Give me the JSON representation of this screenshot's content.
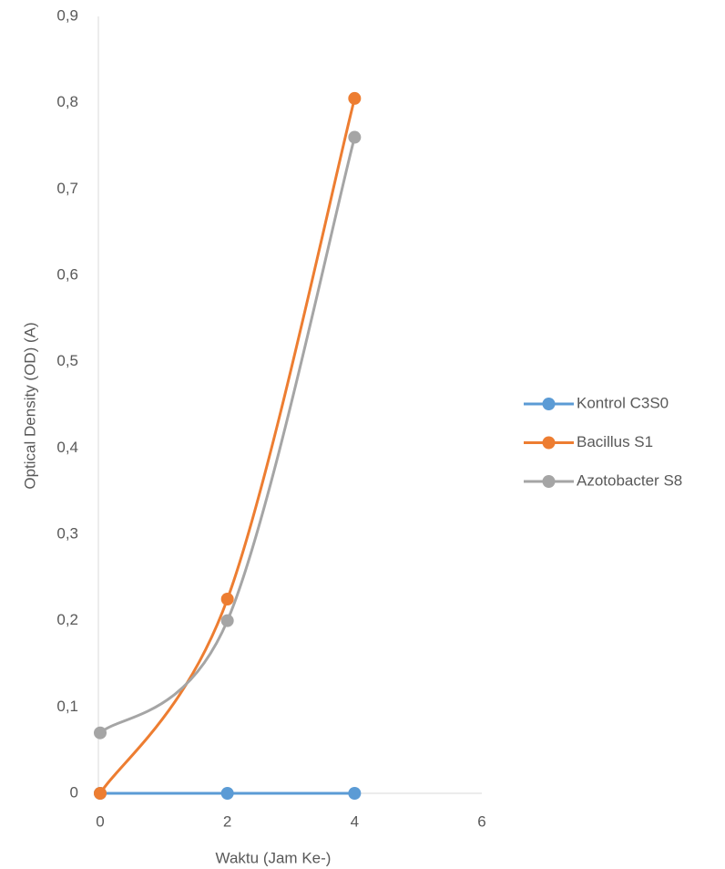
{
  "chart_data": {
    "type": "line",
    "x_label": "Waktu (Jam Ke-)",
    "y_label": "Optical Density (OD) (A)",
    "x": [
      0,
      2,
      4
    ],
    "series": [
      {
        "name": "Kontrol C3S0",
        "color": "#5b9bd5",
        "values": [
          0,
          0,
          0
        ]
      },
      {
        "name": "Bacillus S1",
        "color": "#ed7d31",
        "values": [
          0,
          0.225,
          0.805
        ]
      },
      {
        "name": "Azotobacter S8",
        "color": "#a5a5a5",
        "values": [
          0.07,
          0.2,
          0.76
        ]
      }
    ],
    "xlim": [
      0,
      6
    ],
    "xticks": [
      0,
      2,
      4,
      6
    ],
    "ylim": [
      0,
      0.9
    ],
    "yticks": [
      0,
      {
        "value": 0.1,
        "label": "0,1"
      },
      {
        "value": 0.2,
        "label": "0,2"
      },
      {
        "value": 0.3,
        "label": "0,3"
      },
      {
        "value": 0.4,
        "label": "0,4"
      },
      {
        "value": 0.5,
        "label": "0,5"
      },
      {
        "value": 0.6,
        "label": "0,6"
      },
      {
        "value": 0.7,
        "label": "0,7"
      },
      {
        "value": 0.8,
        "label": "0,8"
      },
      {
        "value": 0.9,
        "label": "0,9"
      }
    ],
    "grid": false,
    "smooth": true,
    "legend": "right"
  }
}
